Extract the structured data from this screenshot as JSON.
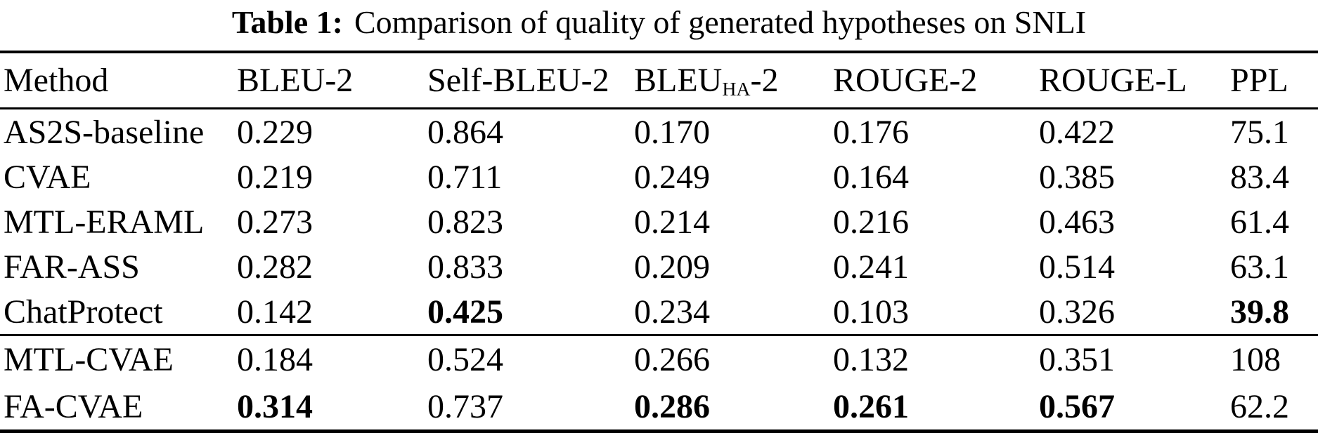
{
  "caption": {
    "label": "Table 1:",
    "text": "Comparison of quality of generated hypotheses on SNLI"
  },
  "table": {
    "columns": [
      {
        "label": "Method"
      },
      {
        "label": "BLEU-2"
      },
      {
        "label": "Self-BLEU-2"
      },
      {
        "label": "BLEU",
        "sub": "HA",
        "suffix": "-2"
      },
      {
        "label": "ROUGE-2"
      },
      {
        "label": "ROUGE-L"
      },
      {
        "label": "PPL"
      }
    ],
    "rows": [
      {
        "method": "AS2S-baseline",
        "values": [
          "0.229",
          "0.864",
          "0.170",
          "0.176",
          "0.422",
          "75.1"
        ],
        "bold": []
      },
      {
        "method": "CVAE",
        "values": [
          "0.219",
          "0.711",
          "0.249",
          "0.164",
          "0.385",
          "83.4"
        ],
        "bold": []
      },
      {
        "method": "MTL-ERAML",
        "values": [
          "0.273",
          "0.823",
          "0.214",
          "0.216",
          "0.463",
          "61.4"
        ],
        "bold": []
      },
      {
        "method": "FAR-ASS",
        "values": [
          "0.282",
          "0.833",
          "0.209",
          "0.241",
          "0.514",
          "63.1"
        ],
        "bold": []
      },
      {
        "method": "ChatProtect",
        "values": [
          "0.142",
          "0.425",
          "0.234",
          "0.103",
          "0.326",
          "39.8"
        ],
        "bold": [
          1,
          5
        ]
      },
      {
        "method": "MTL-CVAE",
        "values": [
          "0.184",
          "0.524",
          "0.266",
          "0.132",
          "0.351",
          "108"
        ],
        "bold": [],
        "group_start": true
      },
      {
        "method": "FA-CVAE",
        "values": [
          "0.314",
          "0.737",
          "0.286",
          "0.261",
          "0.567",
          "62.2"
        ],
        "bold": [
          0,
          2,
          3,
          4
        ]
      }
    ]
  },
  "colors": {
    "text": "#000000",
    "background": "#ffffff",
    "rule": "#000000"
  }
}
